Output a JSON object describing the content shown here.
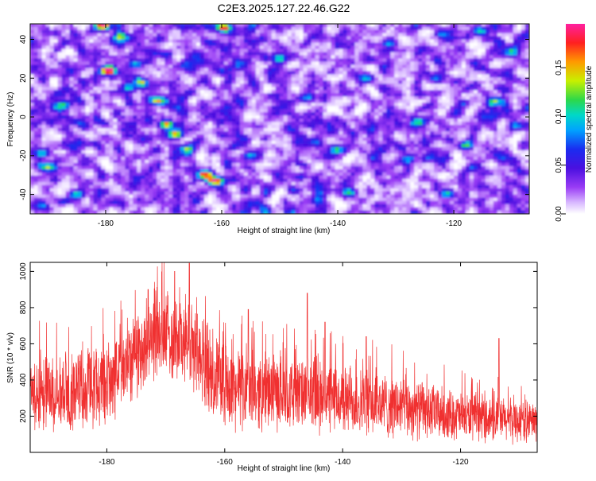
{
  "page_title": "C2E3.2025.127.22.46.G22",
  "chart_data": [
    {
      "type": "heatmap",
      "title": "C2E3.2025.127.22.46.G22",
      "xlabel": "Height of straight line (km)",
      "ylabel": "Frequency (Hz)",
      "xlim": [
        -193,
        -107
      ],
      "ylim": [
        -50,
        48
      ],
      "x_ticks": [
        -180,
        -160,
        -140,
        -120
      ],
      "y_ticks": [
        -40,
        -20,
        0,
        20,
        40
      ],
      "colorbar": {
        "label": "Normalized spectral amplitude",
        "range": [
          0,
          0.195
        ],
        "ticks": [
          0.0,
          0.05,
          0.1,
          0.15
        ],
        "tick_labels": [
          "0.00",
          "0.05",
          "0.10",
          "0.15"
        ]
      },
      "colors": [
        "#ffffff",
        "#ead7ff",
        "#9a3cf5",
        "#6a18e0",
        "#1a2cf0",
        "#00a2ff",
        "#00e6b0",
        "#2dd84a",
        "#c8f000",
        "#ff9a00",
        "#ff2020",
        "#ff20a0"
      ],
      "hotspots": [
        {
          "x": -180.5,
          "y": 47,
          "amp": 0.19
        },
        {
          "x": -159.5,
          "y": 46,
          "amp": 0.17
        },
        {
          "x": -177.5,
          "y": 41,
          "amp": 0.09
        },
        {
          "x": -179.5,
          "y": 24,
          "amp": 0.18
        },
        {
          "x": -175,
          "y": 27,
          "amp": 0.09
        },
        {
          "x": -174,
          "y": 18,
          "amp": 0.1
        },
        {
          "x": -171,
          "y": 8,
          "amp": 0.13
        },
        {
          "x": -176,
          "y": 15,
          "amp": 0.08
        },
        {
          "x": -169.5,
          "y": -4,
          "amp": 0.14
        },
        {
          "x": -168,
          "y": -9,
          "amp": 0.12
        },
        {
          "x": -166,
          "y": -17,
          "amp": 0.1
        },
        {
          "x": -163,
          "y": -30,
          "amp": 0.13
        },
        {
          "x": -161,
          "y": -33,
          "amp": 0.17
        },
        {
          "x": -190,
          "y": -26,
          "amp": 0.12
        },
        {
          "x": -191,
          "y": -19,
          "amp": 0.11
        },
        {
          "x": -188,
          "y": 5,
          "amp": 0.09
        },
        {
          "x": -185,
          "y": -40,
          "amp": 0.08
        },
        {
          "x": -150,
          "y": 30,
          "amp": 0.08
        },
        {
          "x": -140,
          "y": -17,
          "amp": 0.1
        },
        {
          "x": -138,
          "y": -39,
          "amp": 0.11
        },
        {
          "x": -128,
          "y": -22,
          "amp": 0.08
        },
        {
          "x": -126,
          "y": -3,
          "amp": 0.09
        },
        {
          "x": -121,
          "y": -40,
          "amp": 0.1
        },
        {
          "x": -113,
          "y": 8,
          "amp": 0.1
        },
        {
          "x": -110,
          "y": 33,
          "amp": 0.09
        },
        {
          "x": -115,
          "y": 44,
          "amp": 0.08
        },
        {
          "x": -131,
          "y": 38,
          "amp": 0.08
        },
        {
          "x": -145,
          "y": 10,
          "amp": 0.08
        },
        {
          "x": -155,
          "y": -20,
          "amp": 0.08
        },
        {
          "x": -135,
          "y": 20,
          "amp": 0.07
        },
        {
          "x": -118,
          "y": -15,
          "amp": 0.08
        },
        {
          "x": -109,
          "y": -5,
          "amp": 0.07
        }
      ]
    },
    {
      "type": "line",
      "xlabel": "Height of straight line (km)",
      "ylabel": "SNR (10 * v/v)",
      "xlim": [
        -193,
        -107
      ],
      "ylim": [
        0,
        1050
      ],
      "x_ticks": [
        -180,
        -160,
        -140,
        -120
      ],
      "y_ticks": [
        200,
        400,
        600,
        800,
        1000
      ],
      "line_color": "#f03030",
      "envelope_x": [
        -193,
        -185,
        -180,
        -176,
        -172,
        -168,
        -165,
        -162,
        -158,
        -150,
        -140,
        -130,
        -120,
        -112,
        -107
      ],
      "envelope_mean": [
        330,
        340,
        380,
        520,
        640,
        640,
        560,
        430,
        350,
        330,
        290,
        250,
        200,
        180,
        170
      ],
      "envelope_spread": [
        240,
        240,
        260,
        280,
        260,
        300,
        280,
        260,
        250,
        230,
        220,
        200,
        150,
        140,
        130
      ],
      "peaks": [
        {
          "x": -166,
          "y": 1045
        },
        {
          "x": -168.5,
          "y": 1000
        },
        {
          "x": -173,
          "y": 900
        },
        {
          "x": -156,
          "y": 790
        },
        {
          "x": -146,
          "y": 880
        },
        {
          "x": -143,
          "y": 720
        },
        {
          "x": -136,
          "y": 640
        },
        {
          "x": -113.5,
          "y": 630
        }
      ]
    }
  ]
}
